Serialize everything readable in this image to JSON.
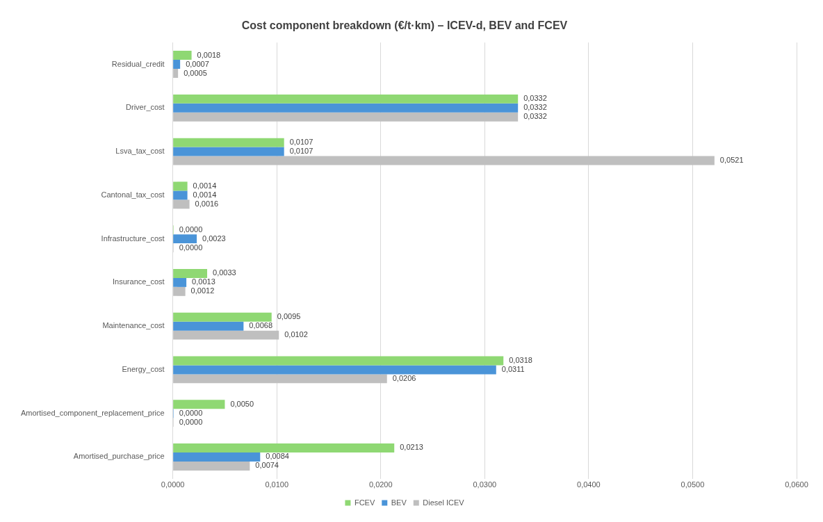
{
  "chart_data": {
    "type": "bar",
    "orientation": "horizontal",
    "title": "Cost component breakdown (€/t·km) – ICEV-d, BEV and FCEV",
    "categories": [
      "Residual_credit",
      "Driver_cost",
      "Lsva_tax_cost",
      "Cantonal_tax_cost",
      "Infrastructure_cost",
      "Insurance_cost",
      "Maintenance_cost",
      "Energy_cost",
      "Amortised_component_replacement_price",
      "Amortised_purchase_price"
    ],
    "series": [
      {
        "name": "FCEV",
        "color": "#8fd873",
        "values": [
          0.0018,
          0.0332,
          0.0107,
          0.0014,
          0.0,
          0.0033,
          0.0095,
          0.0318,
          0.005,
          0.0213
        ],
        "value_labels": [
          "0,0018",
          "0,0332",
          "0,0107",
          "0,0014",
          "0,0000",
          "0,0033",
          "0,0095",
          "0,0318",
          "0,0050",
          "0,0213"
        ]
      },
      {
        "name": "BEV",
        "color": "#4a94d8",
        "values": [
          0.0007,
          0.0332,
          0.0107,
          0.0014,
          0.0023,
          0.0013,
          0.0068,
          0.0311,
          0.0,
          0.0084
        ],
        "value_labels": [
          "0,0007",
          "0,0332",
          "0,0107",
          "0,0014",
          "0,0023",
          "0,0013",
          "0,0068",
          "0,0311",
          "0,0000",
          "0,0084"
        ]
      },
      {
        "name": "Diesel ICEV",
        "color": "#bfbfbf",
        "values": [
          0.0005,
          0.0332,
          0.0521,
          0.0016,
          0.0,
          0.0012,
          0.0102,
          0.0206,
          0.0,
          0.0074
        ],
        "value_labels": [
          "0,0005",
          "0,0332",
          "0,0521",
          "0,0016",
          "0,0000",
          "0,0012",
          "0,0102",
          "0,0206",
          "0,0000",
          "0,0074"
        ]
      }
    ],
    "xlim": [
      0,
      0.06
    ],
    "xticks": [
      {
        "value": 0,
        "label": "0,0000"
      },
      {
        "value": 0.01,
        "label": "0,0100"
      },
      {
        "value": 0.02,
        "label": "0,0200"
      },
      {
        "value": 0.03,
        "label": "0,0300"
      },
      {
        "value": 0.04,
        "label": "0,0400"
      },
      {
        "value": 0.05,
        "label": "0,0500"
      },
      {
        "value": 0.06,
        "label": "0,0600"
      }
    ],
    "grid": "x",
    "legend": "bottom"
  }
}
